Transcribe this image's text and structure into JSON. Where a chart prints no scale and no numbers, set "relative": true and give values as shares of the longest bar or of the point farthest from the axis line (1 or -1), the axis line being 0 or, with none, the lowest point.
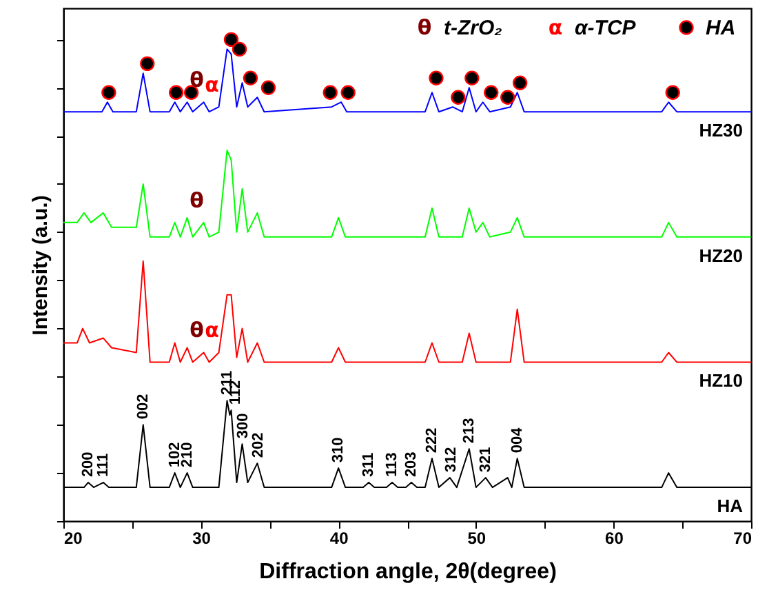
{
  "chart_data": {
    "type": "line",
    "relative": true,
    "xlabel": "Diffraction angle, 2θ(degree)",
    "ylabel": "Intensity (a.u.)",
    "xlim": [
      20,
      70
    ],
    "xticks": [
      20,
      {
        "value": 25,
        "label": null
      },
      30,
      {
        "value": 35,
        "label": null
      },
      40,
      {
        "value": 45,
        "label": null
      },
      50,
      {
        "value": 55,
        "label": null
      },
      60,
      {
        "value": 65,
        "label": null
      },
      70
    ],
    "grid": false,
    "legend": "top right",
    "marker": "none",
    "line_style": "solid",
    "series": [
      {
        "name": "HA",
        "color": "#000000",
        "x": [
          20,
          21.5,
          21.8,
          22.2,
          22.9,
          23.3,
          25.3,
          25.8,
          26.3,
          27.7,
          28.1,
          28.5,
          29.0,
          29.4,
          31.3,
          31.9,
          32.1,
          32.2,
          32.6,
          33.0,
          33.4,
          34.1,
          34.6,
          39.5,
          40.0,
          40.5,
          41.8,
          42.2,
          42.6,
          43.5,
          43.9,
          44.3,
          44.9,
          45.3,
          45.7,
          46.3,
          46.8,
          47.3,
          48.1,
          48.6,
          49.5,
          50.0,
          50.7,
          51.2,
          52.3,
          52.6,
          53.0,
          53.5,
          63.5,
          64.0,
          64.6,
          70
        ],
        "values": [
          0.07,
          0.07,
          0.08,
          0.07,
          0.08,
          0.07,
          0.07,
          0.2,
          0.07,
          0.07,
          0.1,
          0.07,
          0.1,
          0.07,
          0.07,
          0.25,
          0.22,
          0.23,
          0.08,
          0.16,
          0.08,
          0.12,
          0.07,
          0.07,
          0.11,
          0.07,
          0.07,
          0.08,
          0.07,
          0.07,
          0.08,
          0.07,
          0.07,
          0.08,
          0.07,
          0.07,
          0.13,
          0.07,
          0.09,
          0.07,
          0.15,
          0.07,
          0.09,
          0.07,
          0.09,
          0.07,
          0.13,
          0.07,
          0.07,
          0.1,
          0.07,
          0.07
        ]
      },
      {
        "name": "HZ10",
        "color": "#ff0000",
        "x": [
          20,
          21.0,
          21.4,
          21.9,
          22.9,
          23.5,
          25.3,
          25.8,
          26.3,
          27.7,
          28.1,
          28.5,
          29.0,
          29.4,
          30.2,
          30.6,
          31.3,
          31.9,
          32.2,
          32.6,
          33.0,
          33.4,
          34.1,
          34.6,
          39.5,
          40.0,
          40.5,
          46.3,
          46.8,
          47.3,
          49.0,
          49.5,
          50.0,
          52.5,
          53.0,
          53.5,
          63.5,
          64.0,
          64.6,
          70
        ],
        "values": [
          0.37,
          0.37,
          0.4,
          0.37,
          0.38,
          0.36,
          0.35,
          0.54,
          0.33,
          0.33,
          0.37,
          0.33,
          0.36,
          0.33,
          0.35,
          0.33,
          0.35,
          0.47,
          0.47,
          0.34,
          0.4,
          0.33,
          0.37,
          0.33,
          0.33,
          0.36,
          0.33,
          0.33,
          0.37,
          0.33,
          0.33,
          0.39,
          0.33,
          0.33,
          0.44,
          0.33,
          0.33,
          0.35,
          0.33,
          0.33
        ]
      },
      {
        "name": "HZ20",
        "color": "#00ff00",
        "x": [
          20,
          21.0,
          21.5,
          22.0,
          22.9,
          23.5,
          25.3,
          25.8,
          26.3,
          27.7,
          28.1,
          28.5,
          29.0,
          29.4,
          30.2,
          30.6,
          31.3,
          31.9,
          32.2,
          32.6,
          33.0,
          33.4,
          34.1,
          34.6,
          39.5,
          40.0,
          40.5,
          46.3,
          46.8,
          47.3,
          49.0,
          49.5,
          50.0,
          50.5,
          51.0,
          52.5,
          53.0,
          53.5,
          63.5,
          64.0,
          64.6,
          70
        ],
        "values": [
          0.62,
          0.62,
          0.64,
          0.62,
          0.64,
          0.61,
          0.61,
          0.7,
          0.59,
          0.59,
          0.62,
          0.59,
          0.63,
          0.59,
          0.62,
          0.59,
          0.6,
          0.77,
          0.75,
          0.6,
          0.69,
          0.6,
          0.64,
          0.59,
          0.59,
          0.63,
          0.59,
          0.59,
          0.65,
          0.59,
          0.59,
          0.65,
          0.6,
          0.62,
          0.59,
          0.6,
          0.63,
          0.59,
          0.59,
          0.62,
          0.59,
          0.59
        ]
      },
      {
        "name": "HZ30",
        "color": "#0000ff",
        "x": [
          20,
          22.8,
          23.2,
          23.6,
          25.3,
          25.8,
          26.3,
          27.7,
          28.1,
          28.5,
          29.0,
          29.4,
          30.2,
          30.6,
          31.3,
          31.9,
          32.2,
          32.6,
          33.0,
          33.4,
          34.1,
          34.6,
          39.5,
          40.2,
          40.6,
          46.3,
          46.8,
          47.3,
          48.3,
          49.0,
          49.5,
          50.0,
          50.5,
          51.0,
          52.5,
          53.0,
          53.5,
          63.5,
          64.0,
          64.6,
          70
        ],
        "values": [
          0.85,
          0.85,
          0.87,
          0.85,
          0.85,
          0.93,
          0.85,
          0.85,
          0.87,
          0.85,
          0.87,
          0.85,
          0.87,
          0.85,
          0.86,
          0.98,
          0.97,
          0.86,
          0.91,
          0.86,
          0.88,
          0.85,
          0.86,
          0.87,
          0.85,
          0.85,
          0.89,
          0.85,
          0.86,
          0.85,
          0.9,
          0.85,
          0.87,
          0.85,
          0.86,
          0.89,
          0.85,
          0.85,
          0.87,
          0.85,
          0.85
        ]
      },
      {
        "name": "HA",
        "color": "#000000",
        "type": "scatter",
        "marker": "circle",
        "x": [
          23.3,
          26.1,
          28.2,
          29.3,
          32.2,
          32.8,
          33.6,
          34.9,
          39.4,
          40.7,
          47.1,
          48.7,
          49.7,
          51.1,
          52.3,
          53.2,
          64.3
        ],
        "values": [
          0.89,
          0.95,
          0.89,
          0.89,
          1.0,
          0.98,
          0.92,
          0.9,
          0.89,
          0.89,
          0.92,
          0.88,
          0.92,
          0.89,
          0.88,
          0.91,
          0.89
        ]
      }
    ],
    "annotations": [
      "θ",
      "t-ZrO₂",
      "α",
      "α-TCP",
      {
        "text": "θ",
        "x": 30.2,
        "y": 0.87
      },
      {
        "text": "α",
        "x": 31.3,
        "y": 0.86
      },
      {
        "text": "θ",
        "x": 30.2,
        "y": 0.62
      },
      {
        "text": "θ",
        "x": 30.2,
        "y": 0.35
      },
      {
        "text": "α",
        "x": 31.3,
        "y": 0.35
      },
      {
        "text": "200",
        "x": 21.8,
        "y": 0.08
      },
      {
        "text": "111",
        "x": 22.9,
        "y": 0.08
      },
      {
        "text": "002",
        "x": 25.8,
        "y": 0.2
      },
      {
        "text": "102",
        "x": 28.1,
        "y": 0.1
      },
      {
        "text": "210",
        "x": 29.0,
        "y": 0.1
      },
      {
        "text": "211",
        "x": 31.9,
        "y": 0.25
      },
      {
        "text": "112",
        "x": 32.5,
        "y": 0.23
      },
      {
        "text": "300",
        "x": 33.1,
        "y": 0.16
      },
      {
        "text": "202",
        "x": 34.2,
        "y": 0.12
      },
      {
        "text": "310",
        "x": 40.0,
        "y": 0.11
      },
      {
        "text": "311",
        "x": 42.2,
        "y": 0.08
      },
      {
        "text": "113",
        "x": 43.9,
        "y": 0.08
      },
      {
        "text": "203",
        "x": 45.3,
        "y": 0.08
      },
      {
        "text": "222",
        "x": 46.8,
        "y": 0.13
      },
      {
        "text": "312",
        "x": 48.2,
        "y": 0.09
      },
      {
        "text": "213",
        "x": 49.5,
        "y": 0.15
      },
      {
        "text": "321",
        "x": 50.7,
        "y": 0.09
      },
      {
        "text": "004",
        "x": 53.0,
        "y": 0.13
      }
    ]
  }
}
